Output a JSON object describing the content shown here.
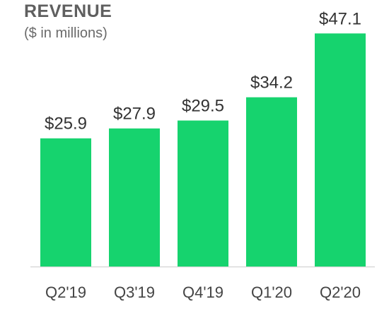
{
  "chart_data": {
    "type": "bar",
    "title": "REVENUE",
    "subtitle": "($ in millions)",
    "categories": [
      "Q2'19",
      "Q3'19",
      "Q4'19",
      "Q1'20",
      "Q2'20"
    ],
    "values": [
      25.9,
      27.9,
      29.5,
      34.2,
      47.1
    ],
    "data_labels": [
      "$25.9",
      "$27.9",
      "$29.5",
      "$34.2",
      "$47.1"
    ],
    "xlabel": "",
    "ylabel": "",
    "ylim": [
      0,
      50
    ],
    "grid": false,
    "bar_color": "#16d36e",
    "baseline_color": "#d9d9d9"
  }
}
